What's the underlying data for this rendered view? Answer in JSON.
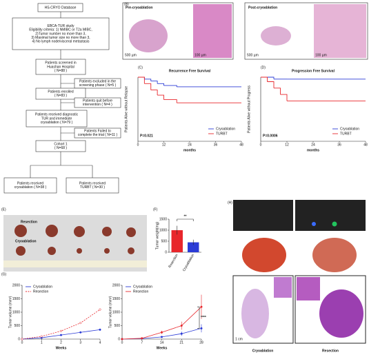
{
  "panel_labels": [
    "(A)",
    "(B)",
    "(C)",
    "(D)",
    "(E)",
    "(F)",
    "(G)",
    "(H)"
  ],
  "flowchart": {
    "nodes": [
      {
        "lines": [
          "HS-CRYO Database"
        ]
      },
      {
        "lines": [
          "EBCA-TUR study",
          "Eligibility criteria: 1) NMIBC or T2a MIBC,",
          "2)Tumor number no more than 3,",
          "3) Maximal tumor size no more than 3,",
          "4) No lymph node/visceral metastasis"
        ]
      },
      {
        "lines": [
          "Patients screened in",
          "Huashan Hospital",
          "( N=88 )"
        ]
      },
      {
        "lines": [
          "Patients excluded in the",
          "screening phase ( N=5 )"
        ]
      },
      {
        "lines": [
          "Patients enrolled",
          "( N=83 )"
        ]
      },
      {
        "lines": [
          "Patients quit before",
          "intervention ( N=4 )"
        ]
      },
      {
        "lines": [
          "Patients received diagnostic",
          "TUR and immediate",
          "cryoablation ( N=79 )"
        ]
      },
      {
        "lines": [
          "Patients Failed to",
          "complete the trial ( N=11 )"
        ]
      },
      {
        "lines": [
          "Cohort 1",
          "( N=68 )"
        ]
      },
      {
        "lines": [
          "Patients received",
          "cryoablation ( N=38 )"
        ]
      },
      {
        "lines": [
          "Patients received",
          "TURBT ( N=30 )"
        ]
      }
    ]
  },
  "histology": {
    "titles": [
      "Pre-cryoablation",
      "Post-cryoablation"
    ],
    "scale_bars": [
      "500 µm",
      "100 µm",
      "500 µm",
      "100 µm"
    ]
  },
  "photo": {
    "rows": [
      "Resection",
      "Cryoablation"
    ]
  },
  "imaging": {
    "groups": [
      "Cryoablation",
      "Resection"
    ],
    "scale_bar": "1 cm"
  },
  "chart_data": [
    {
      "type": "line",
      "step": true,
      "title": "Recurrence Free Survival",
      "y_label": "Patients Alive without Relapse",
      "x_label": "months",
      "x": [
        0,
        3,
        6,
        9,
        12,
        18,
        24,
        48
      ],
      "xlim": [
        0,
        48
      ],
      "xticks": [
        0,
        12,
        24,
        36,
        48
      ],
      "ylim": [
        0,
        1
      ],
      "series": [
        {
          "name": "Cryoablation",
          "color": "#2b3bd6",
          "values": [
            1,
            0.97,
            0.94,
            0.9,
            0.87,
            0.85,
            0.85,
            0.85
          ]
        },
        {
          "name": "TURBT",
          "color": "#e8262b",
          "values": [
            1,
            0.9,
            0.8,
            0.72,
            0.65,
            0.6,
            0.6,
            0.6
          ]
        }
      ],
      "legend": "lower-right",
      "annotation": "P=0.021"
    },
    {
      "type": "line",
      "step": true,
      "title": "Progression Free Survival",
      "y_label": "Patients Alive without Progress",
      "x_label": "months",
      "x": [
        0,
        3,
        6,
        9,
        12,
        18,
        24,
        48
      ],
      "xlim": [
        0,
        48
      ],
      "xticks": [
        0,
        12,
        24,
        36,
        48
      ],
      "ylim": [
        0,
        1
      ],
      "series": [
        {
          "name": "Cryoablation",
          "color": "#2b3bd6",
          "values": [
            1,
            1,
            0.97,
            0.97,
            0.97,
            0.97,
            0.97,
            0.97
          ]
        },
        {
          "name": "TURBT",
          "color": "#e8262b",
          "values": [
            1,
            0.93,
            0.83,
            0.73,
            0.63,
            0.63,
            0.63,
            0.63
          ]
        }
      ],
      "legend": "lower-right",
      "annotation": "P=0.0006"
    },
    {
      "type": "bar",
      "y_label": "Tumor weight(mg)",
      "categories": [
        "Resection",
        "Cryoablation"
      ],
      "values": [
        1000,
        450
      ],
      "errors": [
        200,
        120
      ],
      "colors": [
        "#e8262b",
        "#2b3bd6"
      ],
      "ylim": [
        0,
        1500
      ],
      "yticks": [
        0,
        500,
        1000,
        1500
      ],
      "annotation": "**"
    },
    {
      "type": "line",
      "markers": true,
      "y_label": "Tumor volume (mm³)",
      "x_label": "Weeks",
      "x": [
        0,
        1,
        2,
        3,
        4
      ],
      "xlim": [
        0,
        4
      ],
      "xticks": [
        0,
        1,
        2,
        3,
        4
      ],
      "ylim": [
        0,
        2000
      ],
      "yticks": [
        0,
        500,
        1000,
        1500,
        2000
      ],
      "series": [
        {
          "name": "Cryoablation",
          "color": "#2b3bd6",
          "line_style": "solid",
          "values": [
            0,
            50,
            150,
            250,
            350
          ]
        },
        {
          "name": "Resection",
          "color": "#e8262b",
          "line_style": "dashed",
          "values": [
            0,
            100,
            300,
            600,
            1100
          ]
        }
      ],
      "legend": "upper-left"
    },
    {
      "type": "line",
      "markers": true,
      "y_label": "Tumor volume (mm³)",
      "x_label": "Weeks",
      "x": [
        0,
        7,
        14,
        21,
        28
      ],
      "xlim": [
        0,
        28
      ],
      "xticks": [
        0,
        7,
        14,
        21,
        28
      ],
      "ylim": [
        0,
        2000
      ],
      "yticks": [
        0,
        500,
        1000,
        1500,
        2000
      ],
      "series": [
        {
          "name": "Cryoablation",
          "color": "#2b3bd6",
          "line_style": "solid",
          "values": [
            0,
            20,
            80,
            200,
            400
          ],
          "errors": [
            0,
            10,
            30,
            80,
            150
          ]
        },
        {
          "name": "Resection",
          "color": "#e8262b",
          "line_style": "solid",
          "values": [
            0,
            30,
            250,
            500,
            1200
          ],
          "errors": [
            0,
            10,
            60,
            150,
            450
          ]
        }
      ],
      "legend": "upper-left",
      "annotation": "****"
    }
  ]
}
